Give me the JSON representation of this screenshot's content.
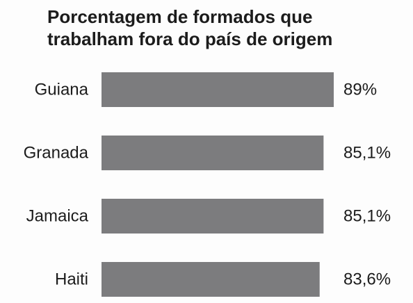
{
  "chart_data": {
    "type": "bar",
    "orientation": "horizontal",
    "title_lines": [
      "Porcentagem de formados que",
      "trabalham fora do país de origem"
    ],
    "categories": [
      "Guiana",
      "Granada",
      "Jamaica",
      "Haiti"
    ],
    "values": [
      89,
      85.1,
      85.1,
      83.6
    ],
    "value_labels": [
      "89%",
      "85,1%",
      "85,1%",
      "83,6%"
    ],
    "xlim": [
      0,
      89
    ],
    "grid": false,
    "legend": "none",
    "bar_color": "#7c7c7e"
  }
}
